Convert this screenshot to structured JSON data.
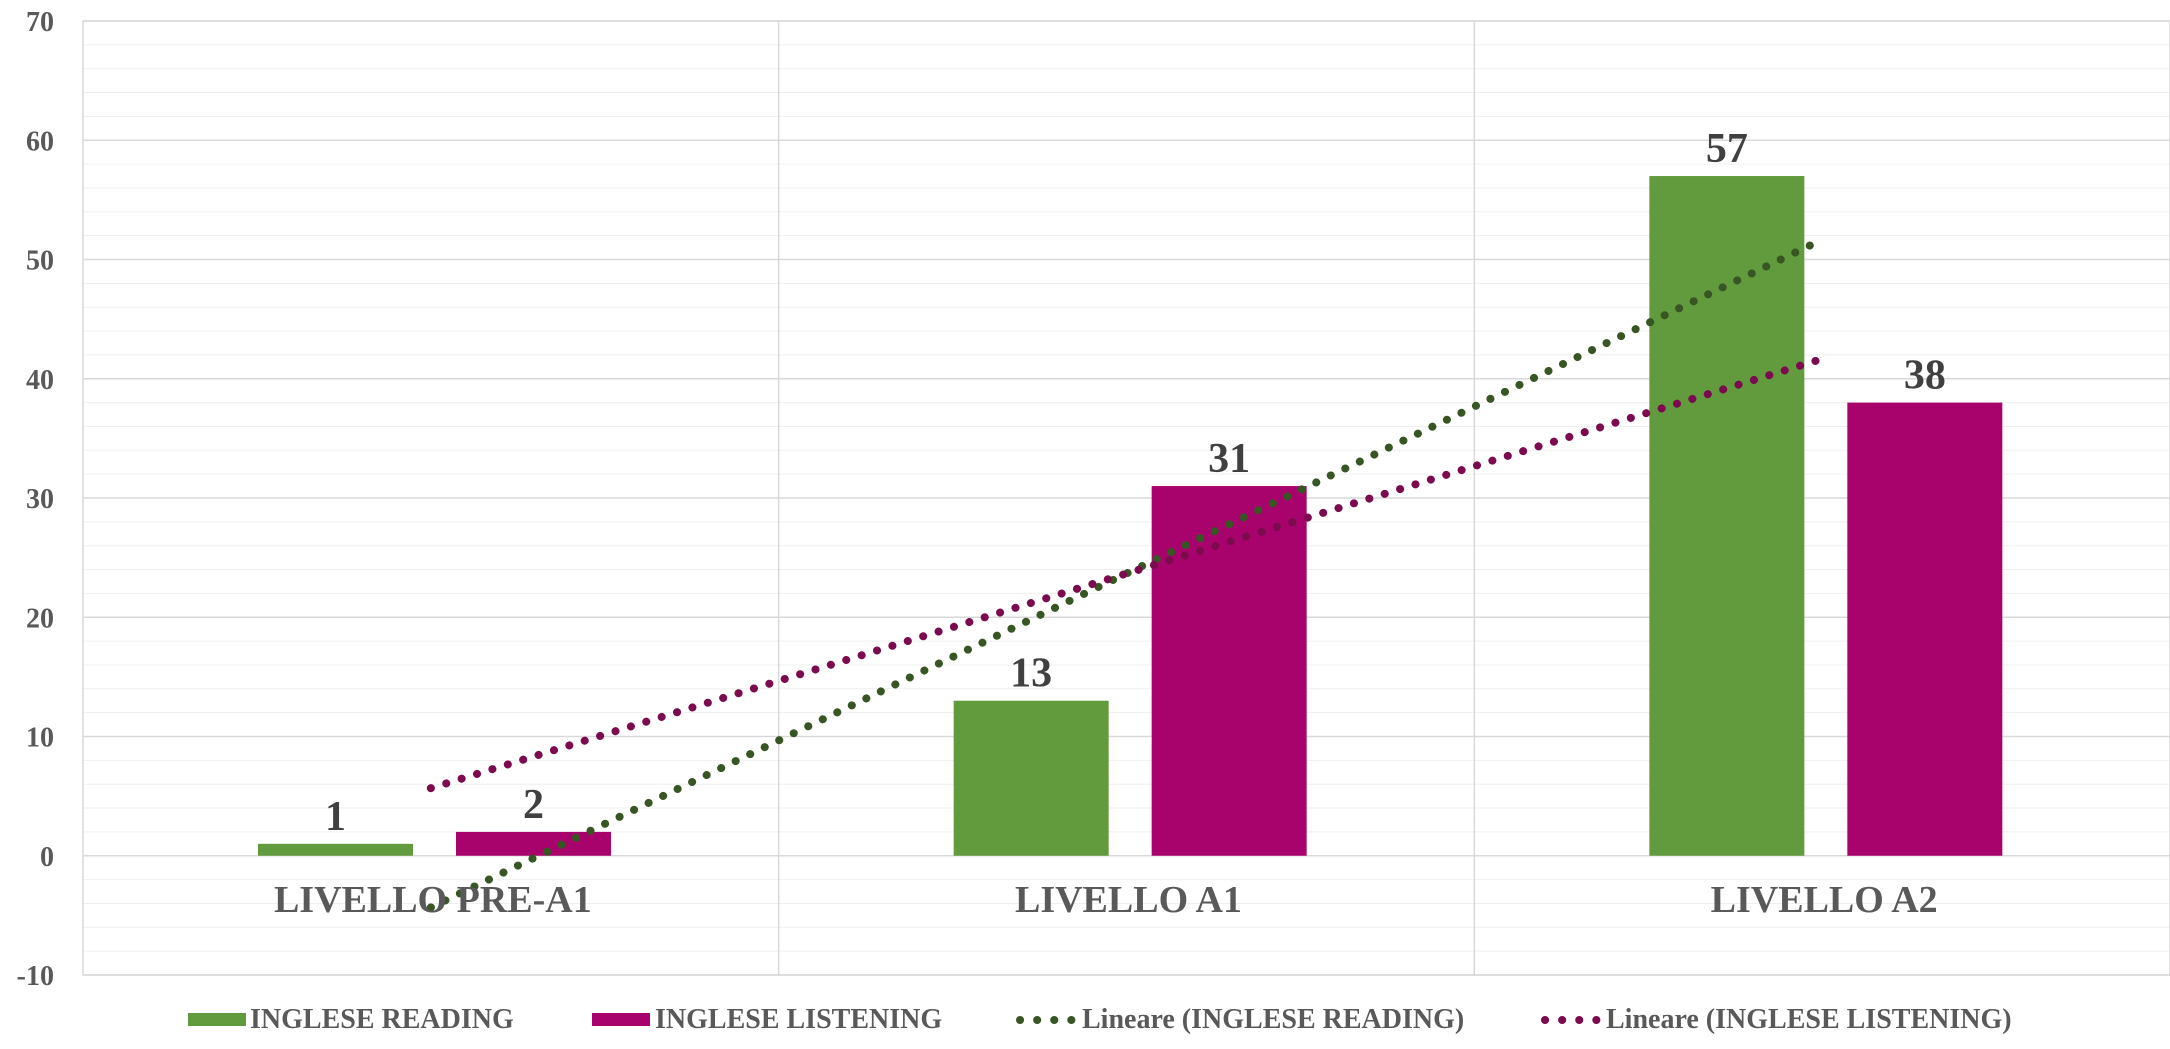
{
  "chart_data": {
    "type": "bar",
    "categories": [
      "LIVELLO PRE-A1",
      "LIVELLO A1",
      "LIVELLO A2"
    ],
    "series": [
      {
        "name": "INGLESE READING",
        "values": [
          1,
          13,
          57
        ],
        "color": "#629B3E"
      },
      {
        "name": "INGLESE LISTENING",
        "values": [
          2,
          31,
          38
        ],
        "color": "#A8036C"
      }
    ],
    "trendlines": [
      {
        "name": "Lineare (INGLESE READING)",
        "series_index": 0,
        "color": "#375623",
        "style": "dotted"
      },
      {
        "name": "Lineare (INGLESE LISTENING)",
        "series_index": 1,
        "color": "#7B0A4E",
        "style": "dotted"
      }
    ],
    "y_ticks": [
      "-10",
      "0",
      "10",
      "20",
      "30",
      "40",
      "50",
      "60",
      "70"
    ],
    "ylim": [
      -10,
      70
    ],
    "ytick_step": 10,
    "grid": true,
    "data_labels": true,
    "legend_position": "bottom"
  }
}
